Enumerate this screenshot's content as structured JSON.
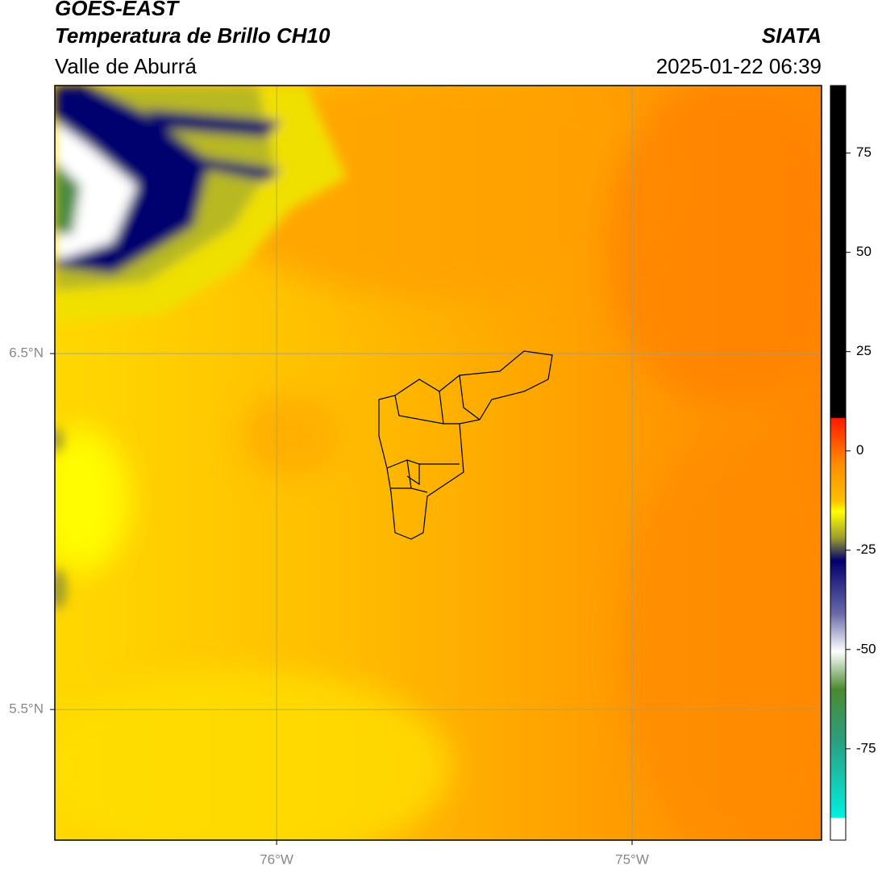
{
  "header": {
    "title": "GOES-EAST",
    "subtitle": "Temperatura de Brillo CH10",
    "region": "Valle de Aburrá",
    "source": "SIATA",
    "datetime": "2025-01-22 06:39"
  },
  "map": {
    "xlim": [
      -76.624,
      -74.467
    ],
    "ylim": [
      5.133,
      7.253
    ],
    "xticks": [
      {
        "value": -76,
        "label": "76°W"
      },
      {
        "value": -75,
        "label": "75°W"
      }
    ],
    "yticks": [
      {
        "value": 6.5,
        "label": "6.5°N"
      },
      {
        "value": 5.5,
        "label": "5.5°N"
      }
    ],
    "grid": true,
    "grid_color": "#9a9a9a"
  },
  "colorbar": {
    "clim": [
      -98,
      92
    ],
    "ticks": [
      75,
      50,
      25,
      0,
      -25,
      -50,
      -75
    ]
  }
}
